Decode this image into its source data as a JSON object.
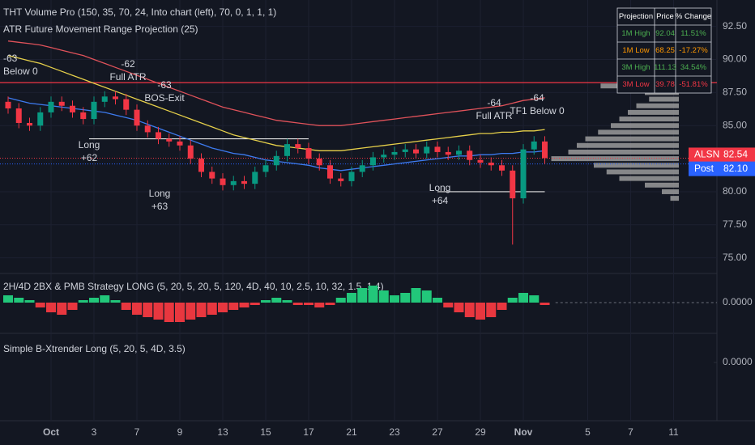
{
  "chart_data": [
    {
      "type": "candlestick",
      "indicator_labels": [
        "THT Volume Pro (150, 35, 70, 24, Into chart (left), 70, 0, 1, 1, 1)",
        "ATR Future Movement Range Projection (25)"
      ],
      "categories": [
        null,
        null,
        null,
        null,
        "Oct",
        null,
        null,
        null,
        "3",
        null,
        null,
        null,
        "7",
        null,
        null,
        null,
        "9",
        null,
        null,
        null,
        "13",
        null,
        null,
        null,
        "15",
        null,
        null,
        null,
        "17",
        null,
        null,
        null,
        "21",
        null,
        null,
        null,
        "23",
        null,
        null,
        null,
        "27",
        null,
        null,
        null,
        "29",
        null,
        null,
        null,
        "Nov",
        null,
        null,
        null,
        null,
        null,
        "5",
        null,
        null,
        null,
        "7",
        null,
        null,
        null,
        "11",
        null,
        null,
        null
      ],
      "open": [
        86.8,
        86.3,
        85.2,
        85.0,
        86.0,
        86.8,
        86.5,
        86.0,
        85.5,
        86.8,
        87.2,
        87.0,
        86.2,
        85.0,
        84.5,
        84.0,
        83.8,
        83.5,
        82.5,
        81.5,
        81.0,
        80.5,
        80.8,
        80.6,
        81.5,
        82.0,
        82.7,
        83.6,
        83.3,
        82.5,
        82.0,
        81.0,
        80.8,
        81.5,
        82.0,
        82.6,
        82.8,
        83.0,
        83.2,
        82.9,
        83.4,
        83.0,
        82.8,
        83.1,
        82.4,
        82.2,
        82.0,
        81.6,
        79.5,
        83.2,
        83.8,
        null,
        null,
        null,
        null,
        null,
        null,
        null,
        null,
        null,
        null,
        null,
        null,
        null,
        null,
        null
      ],
      "high": [
        87.2,
        86.7,
        85.6,
        86.4,
        87.2,
        87.2,
        86.9,
        86.4,
        87.2,
        87.6,
        87.6,
        87.4,
        86.6,
        85.4,
        84.9,
        84.4,
        84.2,
        83.9,
        82.9,
        81.9,
        81.4,
        81.2,
        81.2,
        81.9,
        82.4,
        83.1,
        84.0,
        84.0,
        83.7,
        82.9,
        82.4,
        81.4,
        81.9,
        82.4,
        83.0,
        83.2,
        83.4,
        83.6,
        83.6,
        83.8,
        83.8,
        83.4,
        83.5,
        83.5,
        82.8,
        82.6,
        82.4,
        82.0,
        83.6,
        84.2,
        84.2,
        null,
        null,
        null,
        null,
        null,
        null,
        null,
        null,
        null,
        null,
        null,
        null,
        null,
        null,
        null
      ],
      "low": [
        85.9,
        84.8,
        84.6,
        84.6,
        85.6,
        86.1,
        85.6,
        85.1,
        85.1,
        86.4,
        86.6,
        85.8,
        84.6,
        84.1,
        83.6,
        83.4,
        83.1,
        82.1,
        81.1,
        80.6,
        80.1,
        80.1,
        80.2,
        80.2,
        81.1,
        81.6,
        82.3,
        82.9,
        82.1,
        81.6,
        80.6,
        80.4,
        80.4,
        81.1,
        81.6,
        82.2,
        82.4,
        82.6,
        82.5,
        82.5,
        82.6,
        82.4,
        82.4,
        82.0,
        81.8,
        81.6,
        81.2,
        76.0,
        79.1,
        82.8,
        82.1,
        null,
        null,
        null,
        null,
        null,
        null,
        null,
        null,
        null,
        null,
        null,
        null,
        null,
        null,
        null
      ],
      "close": [
        86.3,
        85.2,
        85.0,
        86.0,
        86.8,
        86.5,
        86.0,
        85.5,
        86.8,
        87.2,
        87.0,
        86.2,
        85.0,
        84.5,
        84.0,
        83.8,
        83.5,
        82.5,
        81.5,
        81.0,
        80.5,
        80.8,
        80.6,
        81.5,
        82.0,
        82.7,
        83.6,
        83.3,
        82.5,
        82.0,
        81.0,
        80.8,
        81.5,
        82.0,
        82.6,
        82.8,
        83.0,
        83.2,
        82.9,
        83.4,
        83.0,
        82.8,
        83.1,
        82.4,
        82.2,
        82.0,
        81.6,
        79.5,
        83.2,
        83.8,
        82.54,
        null,
        null,
        null,
        null,
        null,
        null,
        null,
        null,
        null,
        null,
        null,
        null,
        null,
        null,
        null
      ],
      "up_color": "#089981",
      "down_color": "#f23645",
      "lines": [
        {
          "color": "#e0525a",
          "values": [
            91.4,
            91.3,
            91.2,
            91.1,
            90.9,
            90.7,
            90.5,
            90.3,
            90.0,
            89.7,
            89.4,
            89.1,
            88.8,
            88.5,
            88.2,
            87.9,
            87.6,
            87.3,
            87.0,
            86.7,
            86.4,
            86.2,
            86.0,
            85.8,
            85.6,
            85.4,
            85.3,
            85.2,
            85.1,
            85.0,
            85.0,
            85.0,
            85.1,
            85.2,
            85.3,
            85.4,
            85.5,
            85.6,
            85.7,
            85.8,
            85.9,
            86.0,
            86.1,
            86.2,
            86.3,
            86.4,
            86.5,
            86.7,
            86.9,
            87.0,
            87.1,
            null,
            null,
            null,
            null,
            null,
            null,
            null,
            null,
            null,
            null,
            null,
            null,
            null,
            null,
            null
          ]
        },
        {
          "color": "#e6d04a",
          "values": [
            90.3,
            90.1,
            89.9,
            89.7,
            89.4,
            89.1,
            88.8,
            88.5,
            88.2,
            87.9,
            87.6,
            87.3,
            87.0,
            86.7,
            86.4,
            86.1,
            85.8,
            85.5,
            85.2,
            84.9,
            84.6,
            84.3,
            84.1,
            83.9,
            83.7,
            83.5,
            83.4,
            83.3,
            83.2,
            83.1,
            83.1,
            83.1,
            83.2,
            83.3,
            83.4,
            83.5,
            83.6,
            83.7,
            83.8,
            83.9,
            84.0,
            84.1,
            84.2,
            84.3,
            84.4,
            84.4,
            84.5,
            84.5,
            84.6,
            84.6,
            84.7,
            null,
            null,
            null,
            null,
            null,
            null,
            null,
            null,
            null,
            null,
            null,
            null,
            null,
            null,
            null
          ]
        },
        {
          "color": "#3d7bf0",
          "values": [
            87.1,
            86.9,
            86.7,
            86.6,
            86.5,
            86.4,
            86.3,
            86.2,
            86.1,
            86.0,
            85.8,
            85.6,
            85.4,
            85.1,
            84.8,
            84.5,
            84.2,
            83.9,
            83.6,
            83.3,
            83.1,
            82.9,
            82.8,
            82.6,
            82.4,
            82.3,
            82.2,
            82.1,
            82.0,
            81.8,
            81.7,
            81.6,
            81.7,
            81.8,
            81.9,
            82.0,
            82.1,
            82.2,
            82.3,
            82.4,
            82.5,
            82.6,
            82.7,
            82.7,
            82.8,
            82.8,
            82.9,
            82.9,
            83.0,
            83.0,
            83.1,
            null,
            null,
            null,
            null,
            null,
            null,
            null,
            null,
            null,
            null,
            null,
            null,
            null,
            null,
            null
          ]
        }
      ],
      "levels": [
        {
          "value": 88.25,
          "color": "#f23645"
        },
        {
          "value": 84.0,
          "color": "#e6e6e6"
        },
        {
          "value": 80.0,
          "color": "#e6e6e6"
        }
      ],
      "ylim": [
        74,
        94.5
      ],
      "yticks": [
        {
          "value": 92.5,
          "label": "92.50"
        },
        {
          "value": 90,
          "label": "90.00"
        },
        {
          "value": 87.5,
          "label": "87.50"
        },
        {
          "value": 85,
          "label": "85.00"
        },
        {
          "value": 80,
          "label": "80.00"
        },
        {
          "value": 77.5,
          "label": "77.50"
        },
        {
          "value": 75,
          "label": "75.00"
        }
      ],
      "price_labels": [
        {
          "label": "ALSN",
          "value": 82.54,
          "value_label": "82.54",
          "color": "#f23645"
        },
        {
          "label": "Post",
          "value": 82.1,
          "value_label": "82.10",
          "color": "#2962ff"
        }
      ],
      "volume_profile": {
        "prices": [
          88.0,
          87.5,
          87.0,
          86.5,
          86.0,
          85.5,
          85.0,
          84.5,
          84.0,
          83.5,
          83.0,
          82.5,
          82.0,
          81.5,
          81.0,
          80.5,
          80.0,
          79.5
        ],
        "values": [
          92,
          40,
          35,
          50,
          60,
          70,
          80,
          95,
          110,
          120,
          130,
          150,
          100,
          85,
          70,
          40,
          20,
          10
        ],
        "color": "#9b9b9b"
      },
      "annotations": [
        [
          "-63",
          "Below 0"
        ],
        [
          "-62",
          "Full ATR"
        ],
        [
          "-63",
          "BOS-Exit"
        ],
        [
          "Long",
          "+62"
        ],
        [
          "Long",
          "+63"
        ],
        [
          "Long",
          "+64"
        ],
        [
          "-64",
          "Full ATR"
        ],
        [
          "-64",
          "TF1 Below 0"
        ]
      ],
      "table": {
        "header": [
          "Projection",
          "Price",
          "% Change"
        ],
        "rows": [
          [
            "1M High",
            "92.04",
            "11.51%"
          ],
          [
            "1M Low",
            "68.25",
            "-17.27%"
          ],
          [
            "3M High",
            "111.13",
            "34.54%"
          ],
          [
            "3M Low",
            "39.78",
            "-51.81%"
          ]
        ],
        "row_colors": [
          "#4caf50",
          "#ff9800",
          "#4caf50",
          "#f23645"
        ]
      }
    },
    {
      "type": "bar",
      "title": "2H/4D 2BX & PMB Strategy LONG (5, 20, 5, 20, 5, 120, 4D, 40, 10, 2.5, 10, 32, 1.5, 1.4)",
      "values": [
        0.3,
        0.2,
        0.1,
        -0.2,
        -0.4,
        -0.5,
        -0.3,
        0.1,
        0.2,
        0.3,
        0.1,
        -0.3,
        -0.5,
        -0.6,
        -0.7,
        -0.8,
        -0.8,
        -0.7,
        -0.6,
        -0.5,
        -0.4,
        -0.3,
        -0.2,
        -0.1,
        0.1,
        0.2,
        0.1,
        -0.1,
        -0.1,
        -0.2,
        -0.1,
        0.2,
        0.4,
        0.6,
        0.7,
        0.5,
        0.3,
        0.4,
        0.6,
        0.5,
        0.2,
        -0.2,
        -0.4,
        -0.6,
        -0.7,
        -0.6,
        -0.3,
        0.2,
        0.4,
        0.3,
        -0.1,
        null,
        null,
        null,
        null,
        null,
        null,
        null,
        null,
        null,
        null,
        null,
        null,
        null,
        null,
        null
      ],
      "pos_color": "#22c77a",
      "neg_color": "#e8373f",
      "ylim": [
        -1,
        1
      ],
      "yticks": [
        {
          "value": 0,
          "label": "0.0000"
        }
      ]
    },
    {
      "type": "line",
      "title": "Simple B-Xtrender Long (5, 20, 5, 4D, 3.5)",
      "ylim": [
        -1,
        1
      ],
      "yticks": [
        {
          "value": 0,
          "label": "0.0000"
        }
      ]
    }
  ]
}
